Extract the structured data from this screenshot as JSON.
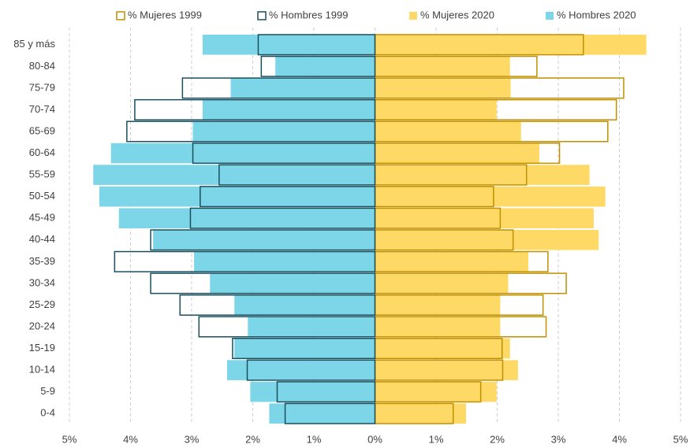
{
  "chart_data": {
    "type": "pyramid",
    "categories": [
      "85 y más",
      "80-84",
      "75-79",
      "70-74",
      "65-69",
      "60-64",
      "55-59",
      "50-54",
      "45-49",
      "40-44",
      "35-39",
      "30-34",
      "25-29",
      "20-24",
      "15-19",
      "10-14",
      "5-9",
      "0-4"
    ],
    "series": [
      {
        "name": "% Mujeres 2020",
        "color": "#ffd966",
        "style": "fill",
        "side": "right",
        "values": [
          4.44,
          2.21,
          2.22,
          1.99,
          2.39,
          2.69,
          3.51,
          3.77,
          3.58,
          3.66,
          2.51,
          2.18,
          2.05,
          2.05,
          2.21,
          2.34,
          1.99,
          1.49
        ]
      },
      {
        "name": "% Hombres 2020",
        "color": "#7dd6e8",
        "style": "fill",
        "side": "left",
        "values": [
          2.82,
          1.63,
          2.36,
          2.82,
          2.98,
          4.32,
          4.61,
          4.51,
          4.19,
          3.63,
          2.96,
          2.7,
          2.3,
          2.08,
          2.3,
          2.42,
          2.04,
          1.73
        ]
      },
      {
        "name": "% Mujeres 1999",
        "color": "#bf9000",
        "style": "outline",
        "side": "right",
        "values": [
          3.41,
          2.65,
          4.07,
          3.95,
          3.81,
          3.02,
          2.48,
          1.94,
          2.05,
          2.26,
          2.83,
          3.13,
          2.75,
          2.8,
          2.08,
          2.09,
          1.73,
          1.28
        ]
      },
      {
        "name": "% Hombres 1999",
        "color": "#1b4f5e",
        "style": "outline",
        "side": "left",
        "values": [
          1.91,
          1.86,
          3.15,
          3.93,
          4.06,
          2.98,
          2.55,
          2.86,
          3.02,
          3.67,
          4.26,
          3.67,
          3.19,
          2.88,
          2.33,
          2.09,
          1.6,
          1.47
        ]
      }
    ],
    "legend_order": [
      2,
      3,
      0,
      1
    ],
    "xlim": [
      -5,
      5
    ],
    "xticks": [
      {
        "value": -5,
        "label": "5%"
      },
      {
        "value": -4,
        "label": "4%"
      },
      {
        "value": -3,
        "label": "3%"
      },
      {
        "value": -2,
        "label": "2%"
      },
      {
        "value": -1,
        "label": "1%"
      },
      {
        "value": 0,
        "label": "0%"
      },
      {
        "value": 1,
        "label": "1%"
      },
      {
        "value": 2,
        "label": "2%"
      },
      {
        "value": 3,
        "label": "3%"
      },
      {
        "value": 4,
        "label": "4%"
      },
      {
        "value": 5,
        "label": "5%"
      }
    ],
    "grid": true
  }
}
